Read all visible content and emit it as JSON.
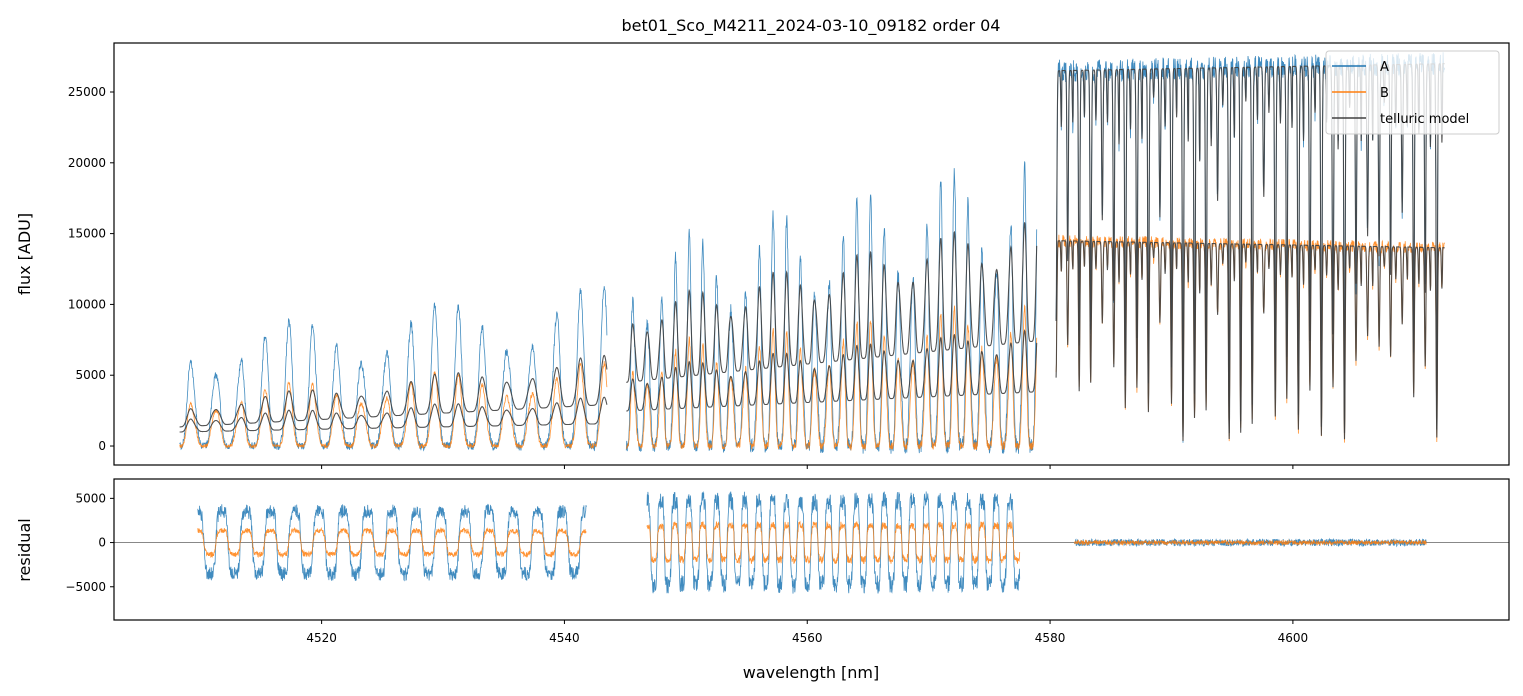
{
  "chart_data": {
    "type": "line",
    "title": "bet01_Sco_M4211_2024-03-10_09182  order 04",
    "xlabel": "wavelength [nm]",
    "xlim": [
      4502.9,
      4617.8
    ],
    "xticks": [
      4520,
      4540,
      4560,
      4580,
      4600
    ],
    "xtick_labels": [
      "4520",
      "4540",
      "4560",
      "4580",
      "4600"
    ],
    "panels": [
      {
        "name": "flux",
        "ylabel": "flux [ADU]",
        "ylim": [
          -1340,
          28460
        ],
        "yticks": [
          0,
          5000,
          10000,
          15000,
          20000,
          25000
        ],
        "ytick_labels": [
          "0",
          "5000",
          "10000",
          "15000",
          "20000",
          "25000"
        ],
        "legend": {
          "placement": "top-right",
          "entries": [
            "A",
            "B",
            "telluric model"
          ]
        },
        "segments": [
          {
            "range": [
              4508.3,
              4543.5
            ],
            "style": "periodic",
            "period": 2.0,
            "A_level": [
              8000,
              11500
            ],
            "B_level": [
              4000,
              6000
            ],
            "model_levels": [
              [
                3000,
                6500
              ],
              [
                2200,
                3500
              ]
            ]
          },
          {
            "range": [
              4545.1,
              4578.9
            ],
            "style": "periodic",
            "period": 1.15,
            "A_level": [
              14000,
              21000
            ],
            "B_level": [
              7000,
              10500
            ],
            "model_levels": [
              [
                10000,
                16500
              ],
              [
                5500,
                8500
              ]
            ]
          },
          {
            "range": [
              4580.5,
              4612.5
            ],
            "style": "lines",
            "period": 0.95,
            "A_level": [
              26500,
              27000
            ],
            "B_level": [
              14500,
              14000
            ],
            "model_levels": [
              [
                26500,
                27000
              ],
              [
                14500,
                14000
              ]
            ]
          }
        ]
      },
      {
        "name": "residual",
        "ylabel": "residual",
        "ylim": [
          -8760,
          7190
        ],
        "yticks": [
          -5000,
          0,
          5000
        ],
        "ytick_labels": [
          "−5000",
          "0",
          "5000"
        ],
        "zero_line": 0,
        "segments": [
          {
            "range": [
              4509.8,
              4541.8
            ],
            "A_amp": 4500,
            "B_amp": 1700,
            "period": 2.0
          },
          {
            "range": [
              4546.8,
              4577.5
            ],
            "A_amp": 6000,
            "B_amp": 2500,
            "period": 1.15
          },
          {
            "range": [
              4582.0,
              4611.0
            ],
            "A_amp": 400,
            "B_amp": 250,
            "period": 0.95
          }
        ]
      }
    ],
    "series": [
      {
        "name": "A",
        "color": "#1f77b4"
      },
      {
        "name": "B",
        "color": "#ff7f0e"
      },
      {
        "name": "telluric model",
        "color": "#404040"
      }
    ]
  }
}
